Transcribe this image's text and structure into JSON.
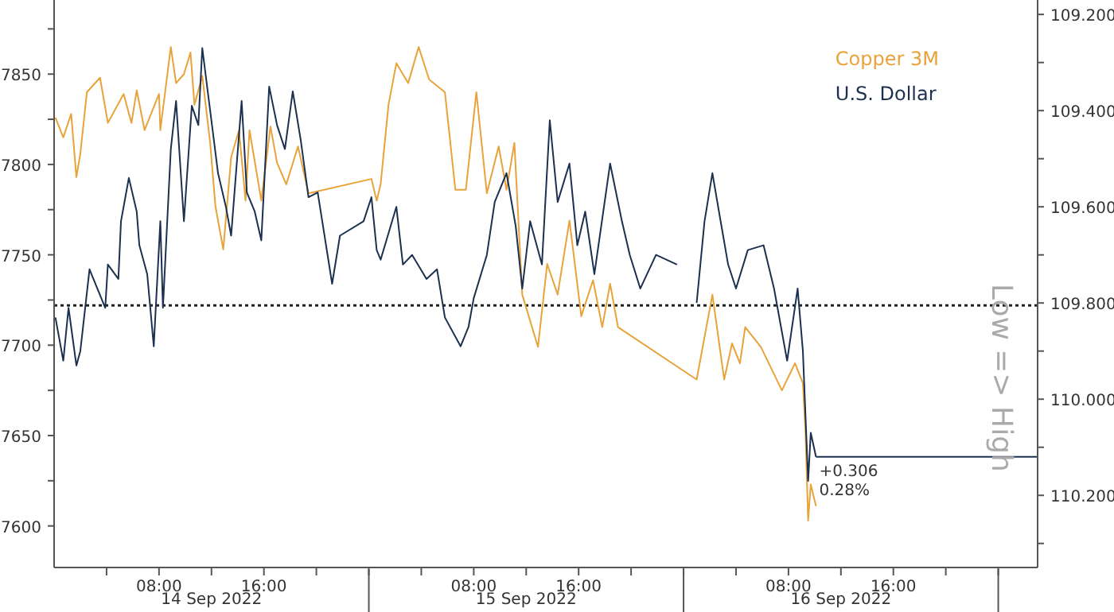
{
  "chart_data": {
    "type": "line",
    "y2label": "Low => High",
    "legend": "top right",
    "marker": "none",
    "line_style": "solid",
    "grid": false,
    "xlim": [
      "2022-09-14T00:00",
      "2022-09-17T03:00"
    ],
    "xticks": [
      {
        "value": "2022-09-14T04:00",
        "label": null
      },
      {
        "value": "2022-09-14T08:00",
        "label": "08:00"
      },
      {
        "value": "2022-09-14T12:00",
        "label": null
      },
      {
        "value": "2022-09-14T16:00",
        "label": "16:00"
      },
      {
        "value": "2022-09-14T20:00",
        "label": null
      },
      {
        "value": "2022-09-15T00:00",
        "label": null
      },
      {
        "value": "2022-09-15T04:00",
        "label": null
      },
      {
        "value": "2022-09-15T08:00",
        "label": "08:00"
      },
      {
        "value": "2022-09-15T12:00",
        "label": null
      },
      {
        "value": "2022-09-15T16:00",
        "label": "16:00"
      },
      {
        "value": "2022-09-15T20:00",
        "label": null
      },
      {
        "value": "2022-09-16T00:00",
        "label": null
      },
      {
        "value": "2022-09-16T04:00",
        "label": null
      },
      {
        "value": "2022-09-16T08:00",
        "label": "08:00"
      },
      {
        "value": "2022-09-16T12:00",
        "label": null
      },
      {
        "value": "2022-09-16T16:00",
        "label": "16:00"
      },
      {
        "value": "2022-09-16T20:00",
        "label": null
      },
      {
        "value": "2022-09-17T00:00",
        "label": null
      }
    ],
    "ylim": [
      7577,
      7891
    ],
    "yticks": [
      7600,
      {
        "value": 7625,
        "label": null
      },
      7650,
      {
        "value": 7675,
        "label": null
      },
      7700,
      {
        "value": 7725,
        "label": null
      },
      7750,
      {
        "value": 7775,
        "label": null
      },
      7800,
      {
        "value": 7825,
        "label": null
      },
      7850,
      {
        "value": 7875,
        "label": null
      }
    ],
    "y2lim": [
      110.35,
      109.17
    ],
    "y2ticks": [
      {
        "value": 109.2,
        "label": "109.200"
      },
      {
        "value": 109.3,
        "label": null
      },
      {
        "value": 109.4,
        "label": "109.400"
      },
      {
        "value": 109.5,
        "label": null
      },
      {
        "value": 109.6,
        "label": "109.600"
      },
      {
        "value": 109.7,
        "label": null
      },
      {
        "value": 109.8,
        "label": "109.800"
      },
      {
        "value": 109.9,
        "label": null
      },
      {
        "value": 110.0,
        "label": "110.000"
      },
      {
        "value": 110.1,
        "label": null
      },
      {
        "value": 110.2,
        "label": "110.200"
      },
      {
        "value": 110.3,
        "label": null
      }
    ],
    "ref_lines": [
      {
        "axis": "y",
        "value": 7722,
        "line_style": "dotted",
        "color": "#222222"
      },
      {
        "axis": "y2",
        "value": 110.12,
        "color": "#1c3050"
      }
    ],
    "annotations": [
      "+0.306",
      "0.28%",
      "14 Sep 2022",
      "15 Sep 2022",
      "16 Sep 2022"
    ],
    "series": [
      {
        "name": "Copper 3M",
        "color": "#e8a33a",
        "x": [
          "2022-09-14T00:06",
          "2022-09-14T00:42",
          "2022-09-14T01:18",
          "2022-09-14T01:42",
          "2022-09-14T02:00",
          "2022-09-14T02:30",
          "2022-09-14T03:30",
          "2022-09-14T04:06",
          "2022-09-14T05:18",
          "2022-09-14T05:54",
          "2022-09-14T06:18",
          "2022-09-14T06:54",
          "2022-09-14T08:00",
          "2022-09-14T08:06",
          "2022-09-14T08:54",
          "2022-09-14T09:18",
          "2022-09-14T09:54",
          "2022-09-14T10:24",
          "2022-09-14T10:42",
          "2022-09-14T11:18",
          "2022-09-14T11:54",
          "2022-09-14T12:18",
          "2022-09-14T12:54",
          "2022-09-14T13:30",
          "2022-09-14T14:06",
          "2022-09-14T14:36",
          "2022-09-14T14:54",
          "2022-09-14T15:48",
          "2022-09-14T16:30",
          "2022-09-14T17:00",
          "2022-09-14T17:42",
          "2022-09-14T18:36",
          "2022-09-14T19:24",
          "2022-09-15T00:12",
          "2022-09-15T00:36",
          "2022-09-15T00:54",
          "2022-09-15T01:30",
          "2022-09-15T02:06",
          "2022-09-15T03:00",
          "2022-09-15T03:48",
          "2022-09-15T04:36",
          "2022-09-15T05:48",
          "2022-09-15T06:36",
          "2022-09-15T07:24",
          "2022-09-15T08:12",
          "2022-09-15T09:00",
          "2022-09-15T09:54",
          "2022-09-15T10:30",
          "2022-09-15T11:06",
          "2022-09-15T11:42",
          "2022-09-15T12:54",
          "2022-09-15T13:36",
          "2022-09-15T14:24",
          "2022-09-15T15:18",
          "2022-09-15T16:12",
          "2022-09-15T17:06",
          "2022-09-15T17:48",
          "2022-09-15T18:24",
          "2022-09-15T19:00",
          "2022-09-16T01:00",
          "2022-09-16T02:12",
          "2022-09-16T03:06",
          "2022-09-16T03:42",
          "2022-09-16T04:18",
          "2022-09-16T04:42",
          "2022-09-16T05:54",
          "2022-09-16T06:42",
          "2022-09-16T07:30",
          "2022-09-16T08:30",
          "2022-09-16T09:06",
          "2022-09-16T09:18",
          "2022-09-16T09:30",
          "2022-09-16T09:42",
          "2022-09-16T10:06"
        ],
        "values": [
          7826,
          7815,
          7828,
          7793,
          7806,
          7840,
          7848,
          7823,
          7839,
          7823,
          7841,
          7819,
          7839,
          7819,
          7865,
          7845,
          7850,
          7862,
          7833,
          7849,
          7812,
          7777,
          7753,
          7804,
          7819,
          7780,
          7819,
          7780,
          7821,
          7801,
          7789,
          7810,
          7784,
          7792,
          7780,
          7789,
          7833,
          7856,
          7845,
          7865,
          7847,
          7840,
          7786,
          7786,
          7840,
          7784,
          7810,
          7786,
          7812,
          7728,
          7699,
          7745,
          7728,
          7769,
          7716,
          7736,
          7710,
          7734,
          7710,
          7681,
          7728,
          7681,
          7701,
          7690,
          7710,
          7699,
          7687,
          7675,
          7690,
          7679,
          7652,
          7603,
          7623,
          7611
        ]
      },
      {
        "name": "U.S. Dollar",
        "color": "#1c3050",
        "axis": "y2",
        "x": [
          "2022-09-14T00:06",
          "2022-09-14T00:42",
          "2022-09-14T01:06",
          "2022-09-14T01:42",
          "2022-09-14T02:00",
          "2022-09-14T02:42",
          "2022-09-14T03:18",
          "2022-09-14T03:54",
          "2022-09-14T04:06",
          "2022-09-14T04:54",
          "2022-09-14T05:06",
          "2022-09-14T05:42",
          "2022-09-14T06:18",
          "2022-09-14T06:30",
          "2022-09-14T07:06",
          "2022-09-14T07:36",
          "2022-09-14T08:06",
          "2022-09-14T08:18",
          "2022-09-14T08:54",
          "2022-09-14T09:18",
          "2022-09-14T09:54",
          "2022-09-14T10:30",
          "2022-09-14T11:00",
          "2022-09-14T11:18",
          "2022-09-14T11:54",
          "2022-09-14T12:30",
          "2022-09-14T13:06",
          "2022-09-14T13:30",
          "2022-09-14T14:18",
          "2022-09-14T14:42",
          "2022-09-14T15:18",
          "2022-09-14T15:48",
          "2022-09-14T16:24",
          "2022-09-14T17:00",
          "2022-09-14T17:36",
          "2022-09-14T18:12",
          "2022-09-14T18:48",
          "2022-09-14T19:24",
          "2022-09-14T20:06",
          "2022-09-14T21:12",
          "2022-09-14T21:48",
          "2022-09-14T23:36",
          "2022-09-15T00:12",
          "2022-09-15T00:36",
          "2022-09-15T00:54",
          "2022-09-15T02:06",
          "2022-09-15T02:36",
          "2022-09-15T03:18",
          "2022-09-15T04:24",
          "2022-09-15T05:12",
          "2022-09-15T05:48",
          "2022-09-15T07:00",
          "2022-09-15T07:36",
          "2022-09-15T08:00",
          "2022-09-15T09:00",
          "2022-09-15T09:36",
          "2022-09-15T10:30",
          "2022-09-15T11:12",
          "2022-09-15T11:42",
          "2022-09-15T12:18",
          "2022-09-15T13:12",
          "2022-09-15T13:48",
          "2022-09-15T14:24",
          "2022-09-15T15:18",
          "2022-09-15T15:54",
          "2022-09-15T16:30",
          "2022-09-15T17:12",
          "2022-09-15T18:24",
          "2022-09-15T19:18",
          "2022-09-15T19:54",
          "2022-09-15T20:42",
          "2022-09-15T21:54",
          "2022-09-15T23:30",
          "2022-09-16T00:30",
          "2022-09-16T01:00",
          "2022-09-16T01:36",
          "2022-09-16T02:12",
          "2022-09-16T02:42",
          "2022-09-16T03:24",
          "2022-09-16T04:00",
          "2022-09-16T04:54",
          "2022-09-16T06:06",
          "2022-09-16T06:54",
          "2022-09-16T07:54",
          "2022-09-16T08:42",
          "2022-09-16T09:06",
          "2022-09-16T09:30",
          "2022-09-16T09:42",
          "2022-09-16T10:06"
        ],
        "values": [
          109.83,
          109.92,
          109.81,
          109.93,
          109.9,
          109.73,
          109.77,
          109.81,
          109.72,
          109.75,
          109.63,
          109.54,
          109.61,
          109.68,
          109.74,
          109.89,
          109.63,
          109.81,
          109.48,
          109.38,
          109.63,
          109.39,
          109.43,
          109.27,
          109.4,
          109.53,
          109.6,
          109.66,
          109.38,
          109.57,
          109.61,
          109.67,
          109.35,
          109.43,
          109.48,
          109.36,
          109.46,
          109.58,
          109.57,
          109.76,
          109.66,
          109.63,
          109.58,
          109.69,
          109.71,
          109.6,
          109.72,
          109.7,
          109.75,
          109.73,
          109.83,
          109.89,
          109.85,
          109.79,
          109.7,
          109.59,
          109.53,
          109.64,
          109.77,
          109.63,
          109.72,
          109.42,
          109.59,
          109.51,
          109.68,
          109.61,
          109.74,
          109.51,
          109.63,
          109.7,
          109.77,
          109.7,
          109.72,
          null,
          109.8,
          109.63,
          109.53,
          109.61,
          109.72,
          109.77,
          109.69,
          109.68,
          109.77,
          109.92,
          109.77,
          109.9,
          110.17,
          110.07,
          110.12
        ]
      }
    ]
  }
}
